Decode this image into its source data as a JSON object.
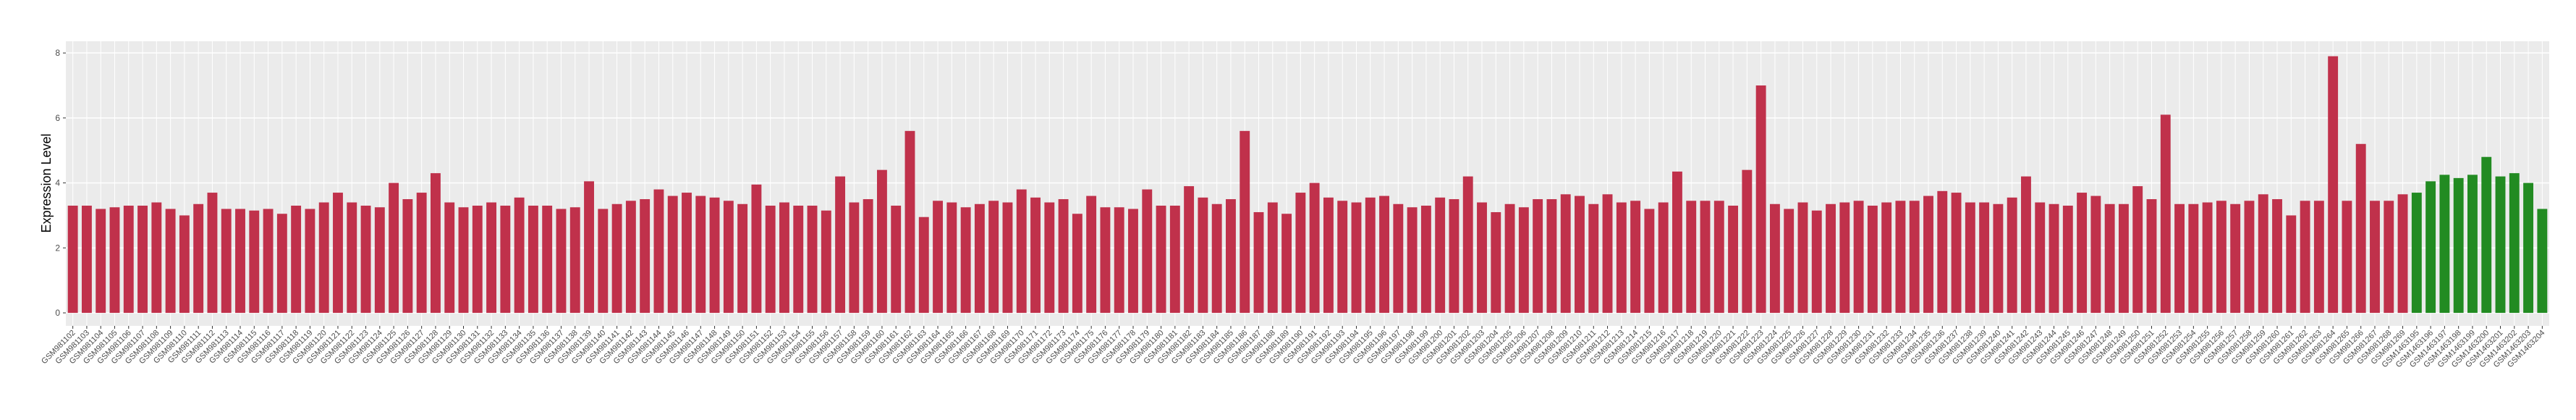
{
  "chart_data": {
    "type": "bar",
    "y_label": "Expression Level",
    "ylim": [
      -0.4,
      8.36
    ],
    "yticks": [
      0,
      2,
      4,
      6,
      8
    ],
    "grid": true,
    "categories": [
      "GSM981102",
      "GSM981103",
      "GSM981104",
      "GSM981105",
      "GSM981106",
      "GSM981107",
      "GSM981108",
      "GSM981109",
      "GSM981110",
      "GSM981111",
      "GSM981112",
      "GSM981113",
      "GSM981114",
      "GSM981115",
      "GSM981116",
      "GSM981117",
      "GSM981118",
      "GSM981119",
      "GSM981120",
      "GSM981121",
      "GSM981122",
      "GSM981123",
      "GSM981124",
      "GSM981125",
      "GSM981126",
      "GSM981127",
      "GSM981128",
      "GSM981129",
      "GSM981130",
      "GSM981131",
      "GSM981132",
      "GSM981133",
      "GSM981134",
      "GSM981135",
      "GSM981136",
      "GSM981137",
      "GSM981138",
      "GSM981139",
      "GSM981140",
      "GSM981141",
      "GSM981142",
      "GSM981143",
      "GSM981144",
      "GSM981145",
      "GSM981146",
      "GSM981147",
      "GSM981148",
      "GSM981149",
      "GSM981150",
      "GSM981151",
      "GSM981152",
      "GSM981153",
      "GSM981154",
      "GSM981155",
      "GSM981156",
      "GSM981157",
      "GSM981158",
      "GSM981159",
      "GSM981160",
      "GSM981161",
      "GSM981162",
      "GSM981163",
      "GSM981164",
      "GSM981165",
      "GSM981166",
      "GSM981167",
      "GSM981168",
      "GSM981169",
      "GSM981170",
      "GSM981171",
      "GSM981172",
      "GSM981173",
      "GSM981174",
      "GSM981175",
      "GSM981176",
      "GSM981177",
      "GSM981178",
      "GSM981179",
      "GSM981180",
      "GSM981181",
      "GSM981182",
      "GSM981183",
      "GSM981184",
      "GSM981185",
      "GSM981186",
      "GSM981187",
      "GSM981188",
      "GSM981189",
      "GSM981190",
      "GSM981191",
      "GSM981192",
      "GSM981193",
      "GSM981194",
      "GSM981195",
      "GSM981196",
      "GSM981197",
      "GSM981198",
      "GSM981199",
      "GSM981200",
      "GSM981201",
      "GSM981202",
      "GSM981203",
      "GSM981204",
      "GSM981205",
      "GSM981206",
      "GSM981207",
      "GSM981208",
      "GSM981209",
      "GSM981210",
      "GSM981211",
      "GSM981212",
      "GSM981213",
      "GSM981214",
      "GSM981215",
      "GSM981216",
      "GSM981217",
      "GSM981218",
      "GSM981219",
      "GSM981220",
      "GSM981221",
      "GSM981222",
      "GSM981223",
      "GSM981224",
      "GSM981225",
      "GSM981226",
      "GSM981227",
      "GSM981228",
      "GSM981229",
      "GSM981230",
      "GSM981231",
      "GSM981232",
      "GSM981233",
      "GSM981234",
      "GSM981235",
      "GSM981236",
      "GSM981237",
      "GSM981238",
      "GSM981239",
      "GSM981240",
      "GSM981241",
      "GSM981242",
      "GSM981243",
      "GSM981244",
      "GSM981245",
      "GSM981246",
      "GSM981247",
      "GSM981248",
      "GSM981249",
      "GSM981250",
      "GSM981251",
      "GSM981252",
      "GSM981253",
      "GSM981254",
      "GSM981255",
      "GSM981256",
      "GSM981257",
      "GSM981258",
      "GSM981259",
      "GSM981260",
      "GSM981261",
      "GSM981262",
      "GSM981263",
      "GSM981264",
      "GSM981265",
      "GSM981266",
      "GSM981267",
      "GSM981268",
      "GSM981269",
      "GSM1463195",
      "GSM1463196",
      "GSM1463197",
      "GSM1463198",
      "GSM1463199",
      "GSM1463200",
      "GSM1463201",
      "GSM1463202",
      "GSM1463203",
      "GSM1463204"
    ],
    "series": [
      {
        "color": "#c0314b",
        "values": [
          3.3,
          3.3,
          3.2,
          3.25,
          3.3,
          3.3,
          3.4,
          3.2,
          3.0,
          3.35,
          3.7,
          3.2,
          3.2,
          3.15,
          3.2,
          3.05,
          3.3,
          3.2,
          3.4,
          3.7,
          3.4,
          3.3,
          3.25,
          4.0,
          3.5,
          3.7,
          4.3,
          3.4,
          3.25,
          3.3,
          3.4,
          3.3,
          3.55,
          3.3,
          3.3,
          3.2,
          3.25,
          4.05,
          3.2,
          3.35,
          3.45,
          3.5,
          3.8,
          3.6,
          3.7,
          3.6,
          3.55,
          3.45,
          3.35,
          3.95,
          3.3,
          3.4,
          3.3,
          3.3,
          3.15,
          4.2,
          3.4,
          3.5,
          4.4,
          3.3,
          5.6,
          2.95,
          3.45,
          3.4,
          3.25,
          3.35,
          3.45,
          3.4,
          3.8,
          3.55,
          3.4,
          3.5,
          3.05,
          3.6,
          3.25,
          3.25,
          3.2,
          3.8,
          3.3,
          3.3,
          3.9,
          3.55,
          3.35,
          3.5,
          5.6,
          3.1,
          3.4,
          3.05,
          3.7,
          4.0,
          3.55,
          3.45,
          3.4,
          3.55,
          3.6,
          3.35,
          3.25,
          3.3,
          3.55,
          3.5,
          4.2,
          3.4,
          3.1,
          3.35,
          3.25,
          3.5,
          3.5,
          3.65,
          3.6,
          3.35,
          3.65,
          3.4,
          3.45,
          3.2,
          3.4,
          4.35,
          3.45,
          3.45,
          3.45,
          3.3,
          4.4,
          7.0,
          3.35,
          3.2,
          3.4,
          3.15,
          3.35,
          3.4,
          3.45,
          3.3,
          3.4,
          3.45,
          3.45,
          3.6,
          3.75,
          3.7,
          3.4,
          3.4,
          3.35,
          3.55,
          4.2,
          3.4,
          3.35,
          3.3,
          3.7,
          3.6,
          3.35,
          3.35,
          3.9,
          3.5,
          6.1,
          3.35,
          3.35,
          3.4,
          3.45,
          3.35,
          3.45,
          3.65,
          3.5,
          3.0,
          3.45,
          3.45,
          7.9,
          3.45,
          5.2,
          3.45,
          3.45,
          3.65,
          null,
          null,
          null,
          null,
          null,
          null,
          null,
          null,
          null,
          null
        ]
      },
      {
        "color": "#228b22",
        "values": [
          null,
          null,
          null,
          null,
          null,
          null,
          null,
          null,
          null,
          null,
          null,
          null,
          null,
          null,
          null,
          null,
          null,
          null,
          null,
          null,
          null,
          null,
          null,
          null,
          null,
          null,
          null,
          null,
          null,
          null,
          null,
          null,
          null,
          null,
          null,
          null,
          null,
          null,
          null,
          null,
          null,
          null,
          null,
          null,
          null,
          null,
          null,
          null,
          null,
          null,
          null,
          null,
          null,
          null,
          null,
          null,
          null,
          null,
          null,
          null,
          null,
          null,
          null,
          null,
          null,
          null,
          null,
          null,
          null,
          null,
          null,
          null,
          null,
          null,
          null,
          null,
          null,
          null,
          null,
          null,
          null,
          null,
          null,
          null,
          null,
          null,
          null,
          null,
          null,
          null,
          null,
          null,
          null,
          null,
          null,
          null,
          null,
          null,
          null,
          null,
          null,
          null,
          null,
          null,
          null,
          null,
          null,
          null,
          null,
          null,
          null,
          null,
          null,
          null,
          null,
          null,
          null,
          null,
          null,
          null,
          null,
          null,
          null,
          null,
          null,
          null,
          null,
          null,
          null,
          null,
          null,
          null,
          null,
          null,
          null,
          null,
          null,
          null,
          null,
          null,
          null,
          null,
          null,
          null,
          null,
          null,
          null,
          null,
          null,
          null,
          null,
          null,
          null,
          null,
          null,
          null,
          null,
          null,
          null,
          null,
          null,
          null,
          null,
          null,
          null,
          null,
          null,
          null,
          3.7,
          4.05,
          4.25,
          4.15,
          4.25,
          4.8,
          4.2,
          4.3,
          4.0,
          3.2
        ]
      }
    ]
  }
}
